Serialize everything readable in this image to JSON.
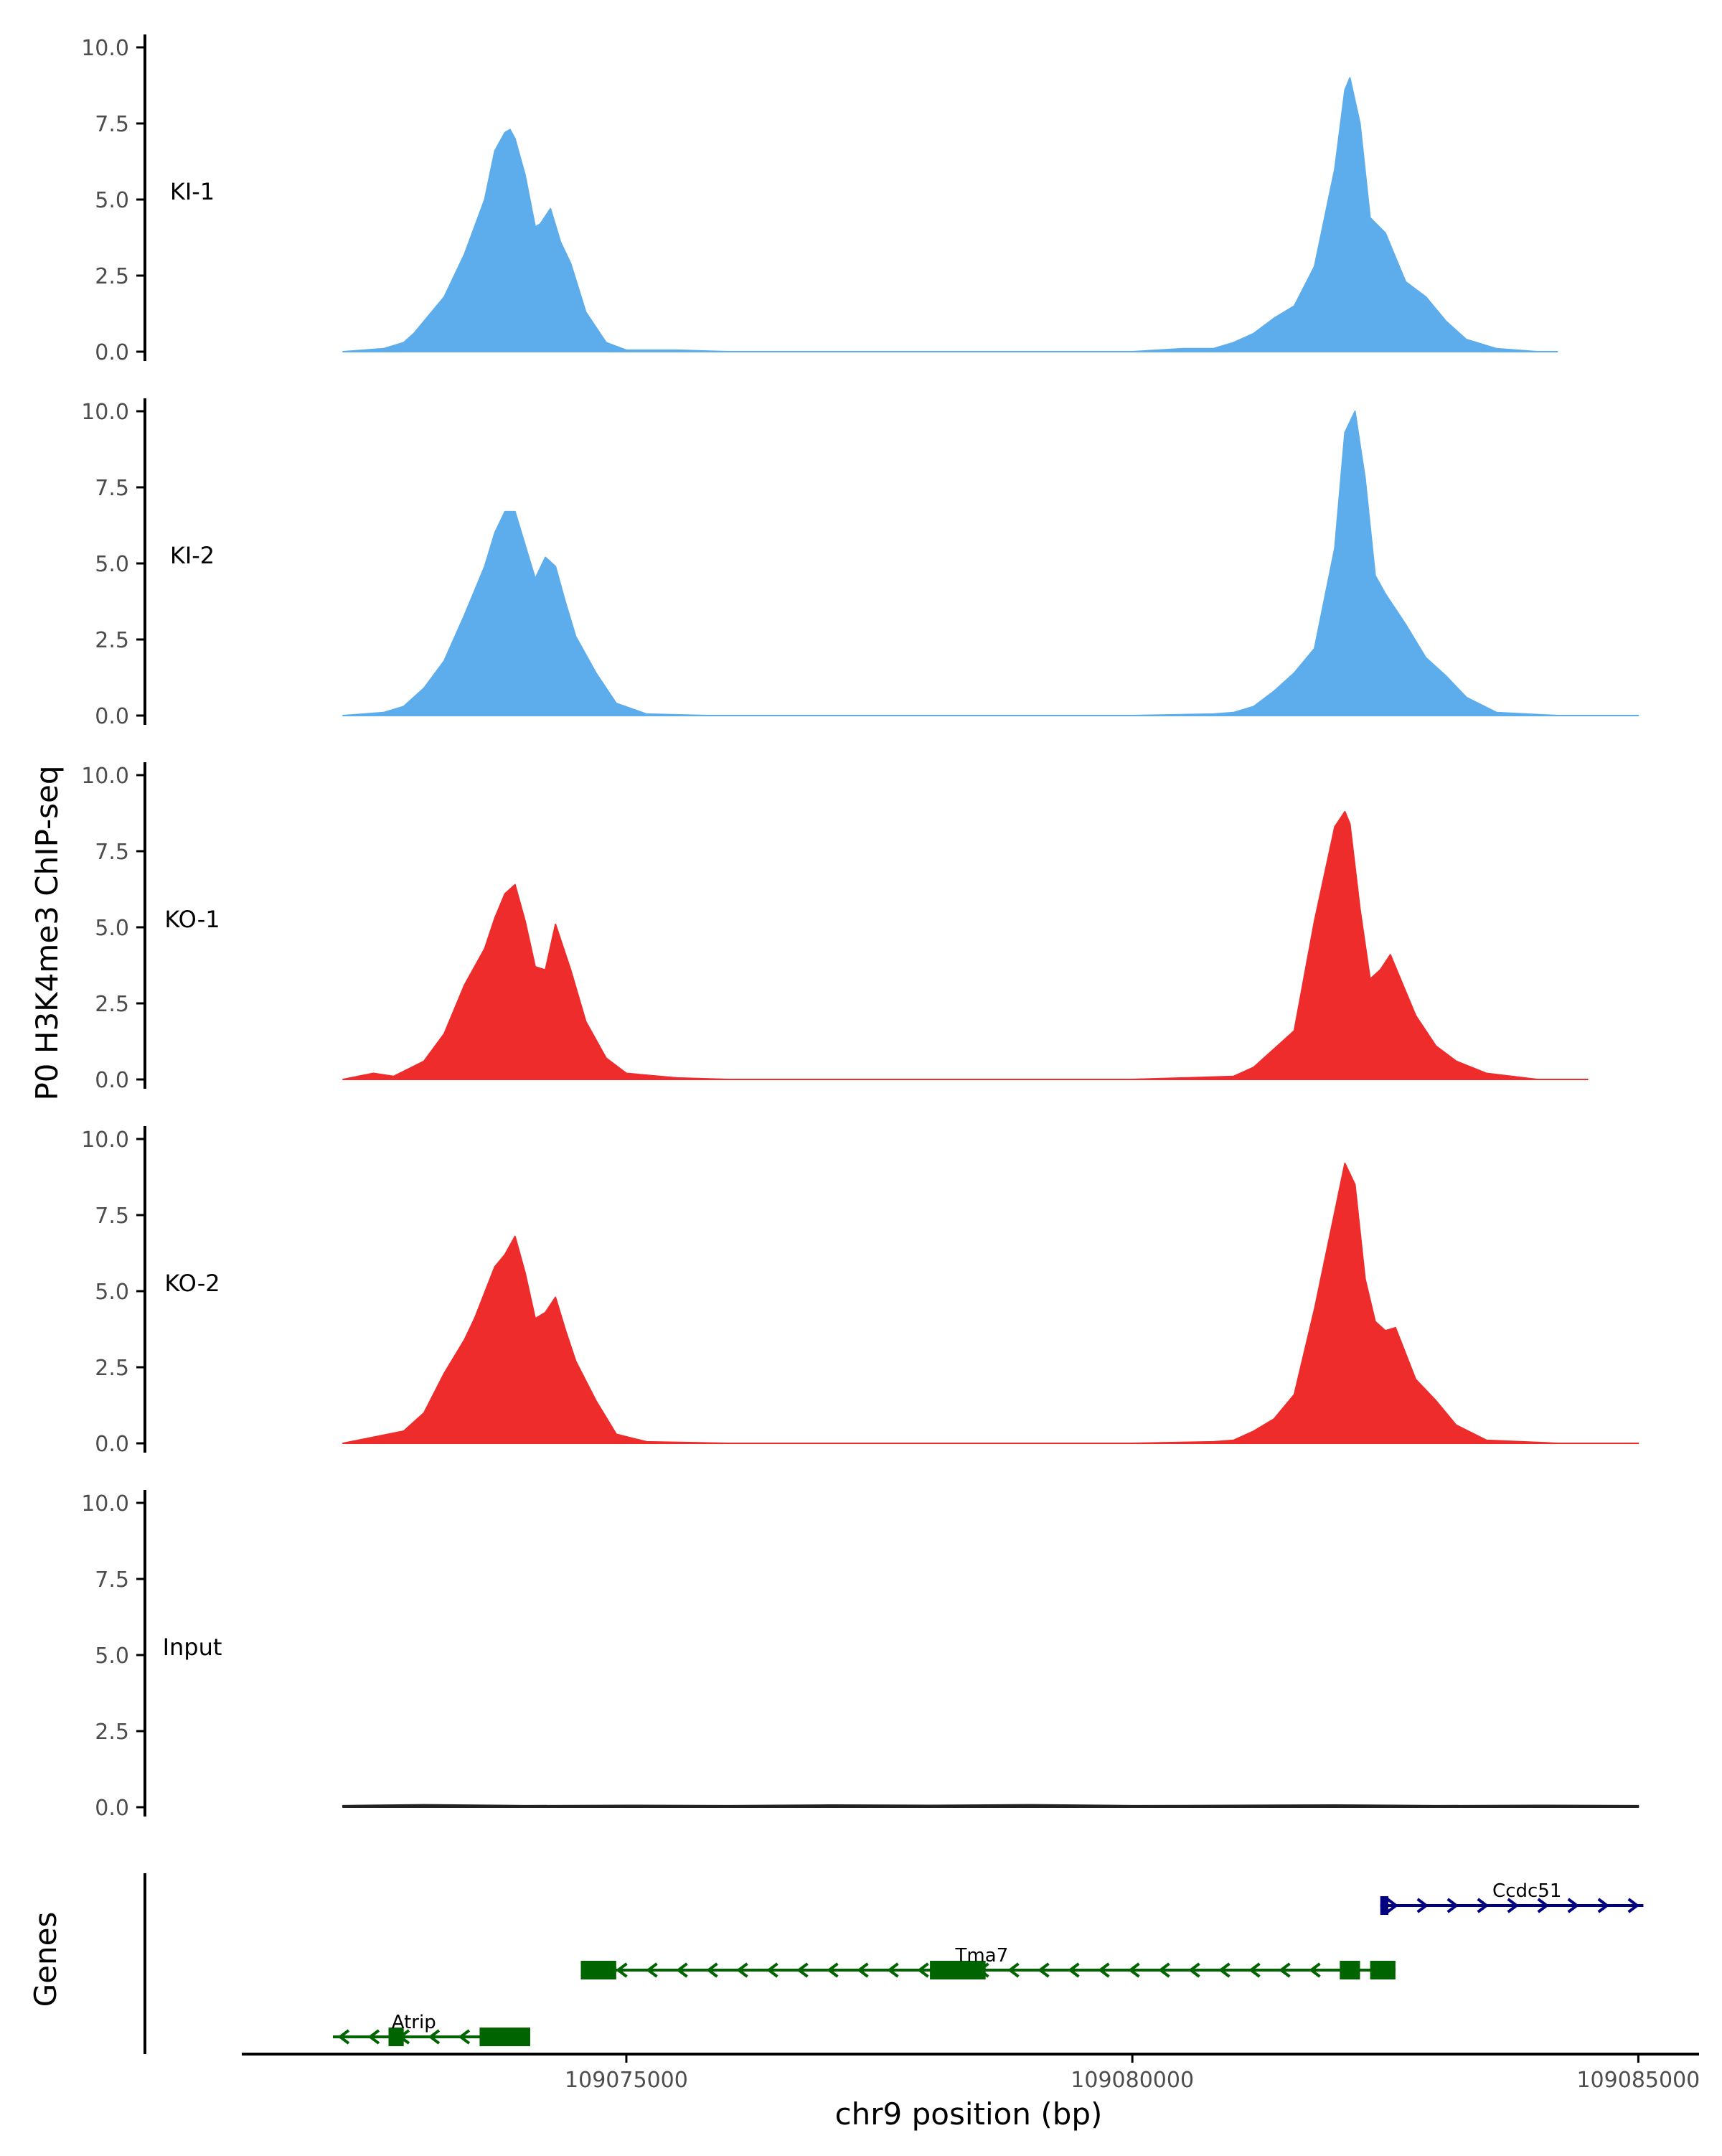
{
  "chart_data": {
    "type": "area",
    "title": "",
    "ylabel": "P0 H3K4me3 ChIP-seq",
    "xlabel": "chr9 position (bp)",
    "ylim": [
      0,
      10.0
    ],
    "xlim": [
      109071200,
      109085600
    ],
    "y_ticks": [
      "0.0",
      "2.5",
      "5.0",
      "7.5",
      "10.0"
    ],
    "x_ticks": [
      {
        "value": 109075000,
        "label": "109075000"
      },
      {
        "value": 109080000,
        "label": "109080000"
      },
      {
        "value": 109085000,
        "label": "109085000"
      }
    ],
    "series": [
      {
        "name": "KI-1",
        "label": "KI-1",
        "color": "#5DADEC",
        "x": [
          109072200,
          109072600,
          109072800,
          109072900,
          109073000,
          109073200,
          109073400,
          109073600,
          109073700,
          109073800,
          109073850,
          109073900,
          109074000,
          109074100,
          109074150,
          109074250,
          109074350,
          109074450,
          109074600,
          109074800,
          109075000,
          109075500,
          109076000,
          109077000,
          109078000,
          109079000,
          109080000,
          109080500,
          109080800,
          109081000,
          109081200,
          109081400,
          109081600,
          109081800,
          109082000,
          109082100,
          109082150,
          109082250,
          109082350,
          109082500,
          109082700,
          109082900,
          109083100,
          109083300,
          109083600,
          109084000,
          109084200
        ],
        "y": [
          0.0,
          0.1,
          0.3,
          0.6,
          1.0,
          1.8,
          3.2,
          5.0,
          6.6,
          7.2,
          7.3,
          7.0,
          5.8,
          4.1,
          4.2,
          4.7,
          3.6,
          2.9,
          1.3,
          0.3,
          0.05,
          0.05,
          0.0,
          0.0,
          0.0,
          0.0,
          0.0,
          0.1,
          0.1,
          0.3,
          0.6,
          1.1,
          1.5,
          2.8,
          6.0,
          8.6,
          9.0,
          7.5,
          4.4,
          3.9,
          2.3,
          1.8,
          1.0,
          0.4,
          0.1,
          0.0,
          0.0
        ]
      },
      {
        "name": "KI-2",
        "label": "KI-2",
        "color": "#5DADEC",
        "x": [
          109072200,
          109072600,
          109072800,
          109073000,
          109073200,
          109073400,
          109073600,
          109073700,
          109073800,
          109073900,
          109074000,
          109074100,
          109074200,
          109074300,
          109074400,
          109074500,
          109074700,
          109074900,
          109075200,
          109075800,
          109077000,
          109078500,
          109080000,
          109080800,
          109081000,
          109081200,
          109081400,
          109081600,
          109081800,
          109082000,
          109082100,
          109082200,
          109082300,
          109082400,
          109082500,
          109082700,
          109082900,
          109083100,
          109083300,
          109083600,
          109084200,
          109085000
        ],
        "y": [
          0.0,
          0.1,
          0.3,
          0.9,
          1.8,
          3.3,
          4.9,
          6.0,
          6.7,
          6.7,
          5.6,
          4.5,
          5.2,
          4.9,
          3.7,
          2.6,
          1.4,
          0.4,
          0.05,
          0.0,
          0.0,
          0.0,
          0.0,
          0.05,
          0.1,
          0.3,
          0.8,
          1.4,
          2.2,
          5.5,
          9.3,
          10.0,
          7.8,
          4.6,
          4.0,
          3.0,
          1.9,
          1.3,
          0.6,
          0.1,
          0.0,
          0.0
        ]
      },
      {
        "name": "KO-1",
        "label": "KO-1",
        "color": "#EE2C2C",
        "x": [
          109072200,
          109072500,
          109072700,
          109073000,
          109073200,
          109073400,
          109073600,
          109073700,
          109073800,
          109073900,
          109074000,
          109074100,
          109074200,
          109074300,
          109074450,
          109074600,
          109074800,
          109075000,
          109075500,
          109076000,
          109077000,
          109078000,
          109079000,
          109080000,
          109080500,
          109081000,
          109081200,
          109081400,
          109081600,
          109081800,
          109082000,
          109082100,
          109082150,
          109082250,
          109082350,
          109082450,
          109082550,
          109082650,
          109082800,
          109083000,
          109083200,
          109083500,
          109084000,
          109084500
        ],
        "y": [
          0.0,
          0.2,
          0.1,
          0.6,
          1.5,
          3.1,
          4.3,
          5.3,
          6.1,
          6.4,
          5.2,
          3.7,
          3.6,
          5.1,
          3.6,
          1.9,
          0.7,
          0.2,
          0.05,
          0.0,
          0.0,
          0.0,
          0.0,
          0.0,
          0.05,
          0.1,
          0.4,
          1.0,
          1.6,
          5.2,
          8.3,
          8.8,
          8.4,
          5.6,
          3.3,
          3.6,
          4.1,
          3.3,
          2.1,
          1.1,
          0.6,
          0.2,
          0.0,
          0.0
        ]
      },
      {
        "name": "KO-2",
        "label": "KO-2",
        "color": "#EE2C2C",
        "x": [
          109072200,
          109072500,
          109072800,
          109073000,
          109073200,
          109073400,
          109073500,
          109073700,
          109073800,
          109073900,
          109074000,
          109074100,
          109074200,
          109074300,
          109074400,
          109074500,
          109074700,
          109074900,
          109075200,
          109076000,
          109077000,
          109078000,
          109079000,
          109080000,
          109080800,
          109081000,
          109081200,
          109081400,
          109081600,
          109081800,
          109082000,
          109082100,
          109082200,
          109082300,
          109082400,
          109082500,
          109082600,
          109082800,
          109083000,
          109083200,
          109083500,
          109084200,
          109085000
        ],
        "y": [
          0.0,
          0.2,
          0.4,
          1.0,
          2.3,
          3.4,
          4.1,
          5.8,
          6.2,
          6.8,
          5.6,
          4.1,
          4.3,
          4.8,
          3.7,
          2.7,
          1.4,
          0.3,
          0.05,
          0.0,
          0.0,
          0.0,
          0.0,
          0.0,
          0.05,
          0.1,
          0.4,
          0.8,
          1.6,
          4.4,
          7.6,
          9.2,
          8.5,
          5.4,
          4.0,
          3.7,
          3.8,
          2.1,
          1.4,
          0.6,
          0.1,
          0.0,
          0.0
        ]
      },
      {
        "name": "Input",
        "label": "Input",
        "color": "#222222",
        "x": [
          109072200,
          109073000,
          109074000,
          109075000,
          109076000,
          109077000,
          109078000,
          109079000,
          109080000,
          109081000,
          109082000,
          109083000,
          109084000,
          109085000
        ],
        "y": [
          0.05,
          0.08,
          0.05,
          0.06,
          0.05,
          0.07,
          0.06,
          0.08,
          0.05,
          0.06,
          0.07,
          0.05,
          0.06,
          0.05
        ]
      }
    ],
    "genes_track": {
      "label": "Genes",
      "genes": [
        {
          "name": "Ccdc51",
          "strand": "+",
          "start": 109082450,
          "end": 109085050,
          "color": "#000080",
          "exons": [
            [
              109082450,
              109082530
            ]
          ]
        },
        {
          "name": "Tma7",
          "strand": "-",
          "start": 109074550,
          "end": 109082600,
          "color": "#006400",
          "exons": [
            [
              109074550,
              109074900
            ],
            [
              109078000,
              109078550
            ],
            [
              109082050,
              109082250
            ],
            [
              109082350,
              109082600
            ]
          ]
        },
        {
          "name": "Atrip",
          "strand": "-",
          "start": 109072100,
          "end": 109074050,
          "color": "#006400",
          "exons": [
            [
              109072650,
              109072800
            ],
            [
              109073550,
              109074050
            ]
          ]
        }
      ]
    }
  }
}
